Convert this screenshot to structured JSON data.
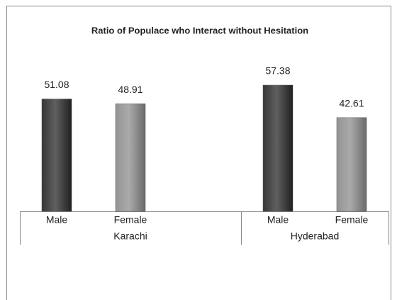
{
  "chart_data": {
    "type": "bar",
    "title": "Ratio of Populace who Interact without Hesitation",
    "groups": [
      {
        "name": "Karachi",
        "categories": [
          "Male",
          "Female"
        ],
        "values": [
          51.08,
          48.91
        ],
        "colors": [
          "#2b2b2b",
          "#8e8e8e"
        ]
      },
      {
        "name": "Hyderabad",
        "categories": [
          "Male",
          "Female"
        ],
        "values": [
          57.38,
          42.61
        ],
        "colors": [
          "#2b2b2b",
          "#8e8e8e"
        ]
      }
    ]
  }
}
